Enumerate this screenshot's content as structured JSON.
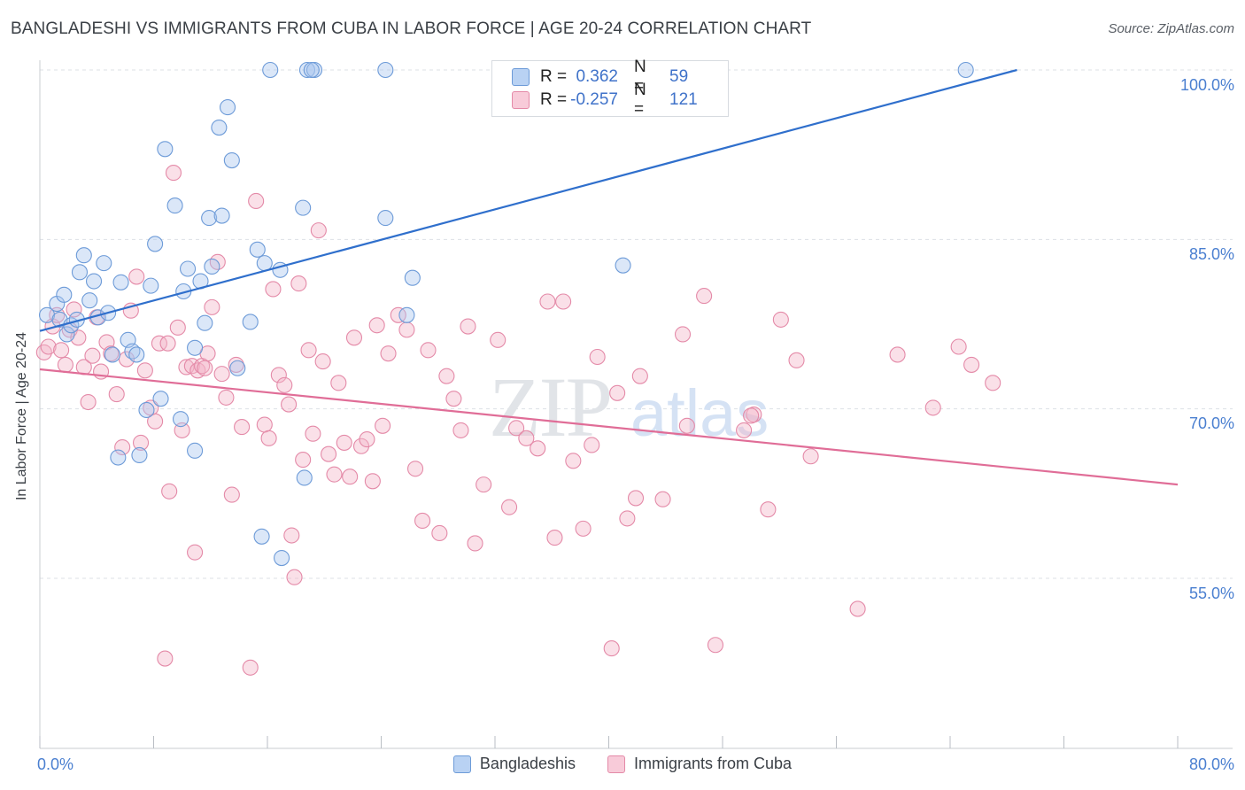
{
  "title": "BANGLADESHI VS IMMIGRANTS FROM CUBA IN LABOR FORCE | AGE 20-24 CORRELATION CHART",
  "source": "Source: ZipAtlas.com",
  "watermark": "ZIPatlas",
  "legend": {
    "r_label": "R =",
    "n_label": "N =",
    "series": [
      {
        "name": "Bangladeshis",
        "r": "0.362",
        "n": "59"
      },
      {
        "name": "Immigrants from Cuba",
        "r": "-0.257",
        "n": "121"
      }
    ]
  },
  "colors": {
    "blue_fill": "#a9c6ef",
    "blue_stroke": "#6d9bd8",
    "blue_line": "#2f6fcc",
    "pink_fill": "#f4b6c9",
    "pink_stroke": "#e48aa8",
    "pink_line": "#e06d97",
    "tick_text": "#4a7fd0",
    "grid": "#dde1e6"
  },
  "chart_data": {
    "type": "scatter",
    "title": "BANGLADESHI VS IMMIGRANTS FROM CUBA IN LABOR FORCE | AGE 20-24 CORRELATION CHART",
    "xlabel": "",
    "ylabel": "In Labor Force | Age 20-24",
    "xlim": [
      0,
      80
    ],
    "ylim": [
      40,
      102
    ],
    "x_tick_labels": [
      "0.0%",
      "80.0%"
    ],
    "y_ticks": [
      55,
      70,
      85,
      100
    ],
    "y_tick_labels": [
      "55.0%",
      "70.0%",
      "85.0%",
      "100.0%"
    ],
    "grid": true,
    "legend_position": "top-center",
    "series": [
      {
        "name": "Bangladeshis",
        "trend": {
          "x": [
            0,
            68.7
          ],
          "y": [
            76.9,
            100.0
          ]
        },
        "points": [
          [
            0.5,
            78.3
          ],
          [
            1.2,
            79.3
          ],
          [
            1.4,
            77.9
          ],
          [
            1.7,
            80.1
          ],
          [
            1.9,
            76.6
          ],
          [
            2.2,
            77.4
          ],
          [
            2.6,
            77.9
          ],
          [
            2.8,
            82.1
          ],
          [
            3.1,
            83.6
          ],
          [
            3.5,
            79.6
          ],
          [
            3.8,
            81.3
          ],
          [
            4.1,
            78.1
          ],
          [
            4.5,
            82.9
          ],
          [
            4.8,
            78.5
          ],
          [
            5.1,
            74.8
          ],
          [
            5.7,
            81.2
          ],
          [
            6.2,
            76.1
          ],
          [
            6.5,
            75.1
          ],
          [
            6.8,
            74.8
          ],
          [
            5.5,
            65.7
          ],
          [
            7.0,
            65.9
          ],
          [
            7.5,
            69.9
          ],
          [
            7.8,
            80.9
          ],
          [
            8.1,
            84.6
          ],
          [
            8.5,
            70.9
          ],
          [
            8.8,
            93.0
          ],
          [
            9.5,
            88.0
          ],
          [
            9.9,
            69.1
          ],
          [
            10.1,
            80.4
          ],
          [
            10.4,
            82.4
          ],
          [
            10.9,
            66.3
          ],
          [
            10.9,
            75.4
          ],
          [
            11.3,
            81.3
          ],
          [
            11.6,
            77.6
          ],
          [
            11.9,
            86.9
          ],
          [
            12.1,
            82.6
          ],
          [
            12.6,
            94.9
          ],
          [
            12.8,
            87.1
          ],
          [
            13.2,
            96.7
          ],
          [
            13.5,
            92.0
          ],
          [
            13.9,
            73.6
          ],
          [
            14.8,
            77.7
          ],
          [
            15.3,
            84.1
          ],
          [
            15.6,
            58.7
          ],
          [
            15.8,
            82.9
          ],
          [
            16.2,
            100.0
          ],
          [
            17.0,
            56.8
          ],
          [
            16.9,
            82.3
          ],
          [
            18.5,
            87.8
          ],
          [
            18.6,
            63.9
          ],
          [
            18.8,
            100.0
          ],
          [
            19.3,
            100.0
          ],
          [
            19.1,
            100.0
          ],
          [
            24.3,
            100.0
          ],
          [
            24.3,
            86.9
          ],
          [
            25.8,
            78.3
          ],
          [
            26.2,
            81.6
          ],
          [
            41.0,
            82.7
          ],
          [
            65.1,
            100.0
          ]
        ]
      },
      {
        "name": "Immigrants from Cuba",
        "trend": {
          "x": [
            0,
            80
          ],
          "y": [
            73.5,
            63.3
          ]
        },
        "points": [
          [
            0.3,
            75.0
          ],
          [
            0.6,
            75.5
          ],
          [
            0.9,
            77.3
          ],
          [
            1.2,
            78.3
          ],
          [
            1.5,
            75.2
          ],
          [
            1.8,
            73.9
          ],
          [
            2.1,
            77.0
          ],
          [
            2.4,
            78.8
          ],
          [
            2.7,
            76.3
          ],
          [
            3.1,
            73.7
          ],
          [
            3.4,
            70.6
          ],
          [
            3.7,
            74.7
          ],
          [
            4.0,
            78.1
          ],
          [
            4.3,
            73.3
          ],
          [
            4.7,
            75.9
          ],
          [
            5.0,
            74.9
          ],
          [
            5.4,
            71.3
          ],
          [
            5.8,
            66.6
          ],
          [
            6.1,
            74.4
          ],
          [
            6.4,
            78.7
          ],
          [
            6.8,
            81.7
          ],
          [
            7.1,
            67.0
          ],
          [
            7.4,
            73.4
          ],
          [
            7.8,
            70.1
          ],
          [
            8.1,
            68.9
          ],
          [
            8.4,
            75.8
          ],
          [
            8.8,
            47.9
          ],
          [
            9.1,
            62.7
          ],
          [
            9.4,
            90.9
          ],
          [
            9.7,
            77.2
          ],
          [
            10.0,
            68.1
          ],
          [
            10.3,
            73.7
          ],
          [
            10.7,
            73.8
          ],
          [
            10.9,
            57.3
          ],
          [
            11.1,
            73.4
          ],
          [
            11.4,
            73.8
          ],
          [
            11.8,
            74.9
          ],
          [
            12.1,
            79.0
          ],
          [
            12.5,
            83.0
          ],
          [
            12.8,
            73.1
          ],
          [
            13.1,
            71.0
          ],
          [
            13.5,
            62.4
          ],
          [
            13.8,
            73.9
          ],
          [
            14.2,
            68.4
          ],
          [
            14.8,
            47.1
          ],
          [
            15.2,
            88.4
          ],
          [
            15.8,
            68.6
          ],
          [
            16.1,
            67.4
          ],
          [
            16.4,
            80.6
          ],
          [
            16.8,
            73.0
          ],
          [
            17.2,
            72.1
          ],
          [
            17.5,
            70.4
          ],
          [
            17.7,
            58.8
          ],
          [
            17.9,
            55.1
          ],
          [
            18.2,
            81.1
          ],
          [
            18.5,
            65.5
          ],
          [
            18.9,
            75.2
          ],
          [
            19.2,
            67.8
          ],
          [
            19.6,
            85.8
          ],
          [
            19.9,
            74.2
          ],
          [
            20.3,
            66.0
          ],
          [
            20.7,
            64.2
          ],
          [
            21.0,
            72.3
          ],
          [
            21.4,
            67.0
          ],
          [
            21.8,
            64.0
          ],
          [
            22.1,
            76.3
          ],
          [
            22.6,
            66.7
          ],
          [
            23.0,
            67.3
          ],
          [
            23.4,
            63.6
          ],
          [
            23.7,
            77.4
          ],
          [
            24.1,
            68.5
          ],
          [
            24.5,
            74.9
          ],
          [
            25.2,
            78.3
          ],
          [
            25.8,
            77.0
          ],
          [
            26.4,
            64.7
          ],
          [
            26.9,
            60.1
          ],
          [
            27.3,
            75.2
          ],
          [
            28.1,
            59.0
          ],
          [
            28.6,
            72.9
          ],
          [
            29.1,
            70.9
          ],
          [
            29.6,
            68.1
          ],
          [
            30.1,
            77.3
          ],
          [
            30.6,
            58.1
          ],
          [
            31.2,
            63.3
          ],
          [
            32.2,
            76.1
          ],
          [
            33.0,
            61.3
          ],
          [
            33.5,
            68.3
          ],
          [
            34.2,
            67.4
          ],
          [
            35.0,
            66.5
          ],
          [
            35.7,
            79.5
          ],
          [
            36.2,
            58.6
          ],
          [
            36.8,
            79.5
          ],
          [
            37.5,
            65.4
          ],
          [
            38.2,
            59.4
          ],
          [
            38.8,
            66.8
          ],
          [
            39.2,
            74.6
          ],
          [
            40.2,
            48.8
          ],
          [
            40.6,
            71.4
          ],
          [
            41.3,
            60.3
          ],
          [
            41.9,
            62.1
          ],
          [
            42.2,
            72.9
          ],
          [
            43.8,
            62.0
          ],
          [
            45.2,
            76.6
          ],
          [
            45.5,
            68.5
          ],
          [
            46.7,
            80.0
          ],
          [
            47.5,
            49.1
          ],
          [
            49.5,
            68.1
          ],
          [
            50.2,
            69.5
          ],
          [
            51.2,
            61.1
          ],
          [
            52.1,
            77.9
          ],
          [
            53.2,
            74.3
          ],
          [
            54.2,
            65.8
          ],
          [
            57.5,
            52.3
          ],
          [
            60.3,
            74.8
          ],
          [
            62.8,
            70.1
          ],
          [
            64.6,
            75.5
          ],
          [
            65.5,
            73.9
          ],
          [
            67.0,
            72.3
          ],
          [
            50.0,
            69.4
          ],
          [
            9.0,
            75.8
          ],
          [
            11.6,
            73.6
          ]
        ]
      }
    ]
  }
}
